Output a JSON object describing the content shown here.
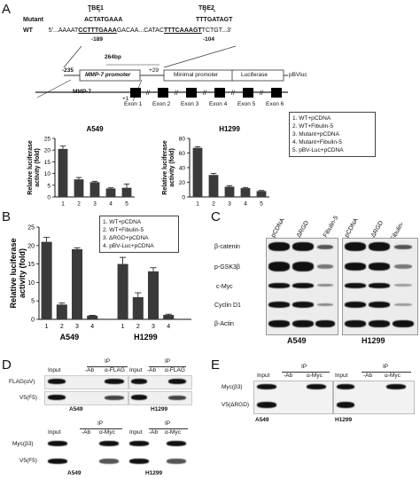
{
  "panels": {
    "A": "A",
    "B": "B",
    "C": "C",
    "D": "D",
    "E": "E"
  },
  "panelA": {
    "tbe1": "TBE1",
    "tbe2": "TBE2",
    "mutant_label": "Mutant",
    "wt_label": "WT",
    "mutant_seq1": "ACTATGAAA",
    "mutant_seq2": "TTTGATAGT",
    "wt_seq_prefix": "5'...AAAAT",
    "wt_seq_tbe1": "CCTTTGAAA",
    "wt_seq_mid": "GACAA...CATAC",
    "wt_seq_tbe2": "TTTCAAAGT",
    "wt_seq_suffix": "TCTGT...3'",
    "pos_189": "-189",
    "pos_104": "-104",
    "bp_264": "264bp",
    "pos_235": "-235",
    "pos_29": "+29",
    "mmp7_promoter": "MMP-7 promoter",
    "minimal_promoter": "Minimal promoter",
    "luciferase": "Luciferase",
    "pbvluc": "pBVluc",
    "mmp7_label": "MMP-7",
    "plus1": "+1",
    "exons": [
      "Exon 1",
      "Exon 2",
      "Exon 3",
      "Exon 4",
      "Exon 5",
      "Exon 6"
    ],
    "legend": [
      "1. WT+pCDNA",
      "2. WT+Fibulin-5",
      "3. Mutant+pCDNA",
      "4. Mutant+Fibulin-5",
      "5. pBV-Luc+pCDNA"
    ]
  },
  "panelB": {
    "legend": [
      "1. WT+pCDNA",
      "2. WT+Fibulin-5",
      "3. ΔRGD+pCDNA",
      "4. pBV-Luc+pCDNA"
    ]
  },
  "panelC": {
    "columns": [
      "pCDNA",
      "ΔRGD",
      "Fibulin-5",
      "pCDNA",
      "ΔRGD",
      "Fibulin-5"
    ],
    "rows": [
      "β-catenin",
      "p-GSK3β",
      "c-Myc",
      "Cyclin D1",
      "β-Actin"
    ],
    "cell_lines": [
      "A549",
      "H1299"
    ]
  },
  "panelD": {
    "top": {
      "ip": "IP",
      "input": "Input",
      "cols": [
        "-Ab",
        "α-FLAG"
      ],
      "rows": [
        "FLAG(αV)",
        "V5(F5)"
      ]
    },
    "bottom": {
      "ip": "IP",
      "input": "Input",
      "cols": [
        "-Ab",
        "α-Myc"
      ],
      "rows": [
        "Myc(β3)",
        "V5(F5)"
      ]
    },
    "cell_lines": [
      "A549",
      "H1299"
    ]
  },
  "panelE": {
    "ip": "IP",
    "input": "Input",
    "cols": [
      "-Ab",
      "α-Myc"
    ],
    "rows": [
      "Myc(β3)",
      "V5(ΔRGD)"
    ],
    "cell_lines": [
      "A549",
      "H1299"
    ]
  },
  "chart_data": [
    {
      "type": "bar",
      "title": "A549",
      "ylabel": "Relative luciferase activity (fold)",
      "categories": [
        "1",
        "2",
        "3",
        "4",
        "5"
      ],
      "values": [
        20.5,
        7.5,
        6.3,
        3.6,
        3.9
      ],
      "errors": [
        1.2,
        0.8,
        0.4,
        0.3,
        1.6
      ],
      "ylim": [
        0,
        25
      ],
      "yticks": [
        0,
        5,
        10,
        15,
        20,
        25
      ]
    },
    {
      "type": "bar",
      "title": "H1299",
      "ylabel": "Relative luciferase activity (fold)",
      "categories": [
        "1",
        "2",
        "3",
        "4",
        "5"
      ],
      "values": [
        67,
        30,
        14,
        12,
        8
      ],
      "errors": [
        1.5,
        2,
        1.5,
        1,
        0.8
      ],
      "ylim": [
        0,
        80
      ],
      "yticks": [
        0,
        20,
        40,
        60,
        80
      ]
    },
    {
      "type": "bar",
      "ylabel": "Relative luciferase activity (fold)",
      "groups": [
        "A549",
        "H1299"
      ],
      "categories": [
        "1",
        "2",
        "3",
        "4",
        "1",
        "2",
        "3",
        "4"
      ],
      "values": [
        21,
        4,
        19,
        1,
        15,
        6,
        13,
        1.2
      ],
      "errors": [
        1.2,
        0.4,
        0.4,
        0.1,
        1.8,
        1.2,
        1.0,
        0.2
      ],
      "ylim": [
        0,
        25
      ],
      "yticks": [
        0,
        5,
        10,
        15,
        20,
        25
      ]
    }
  ]
}
